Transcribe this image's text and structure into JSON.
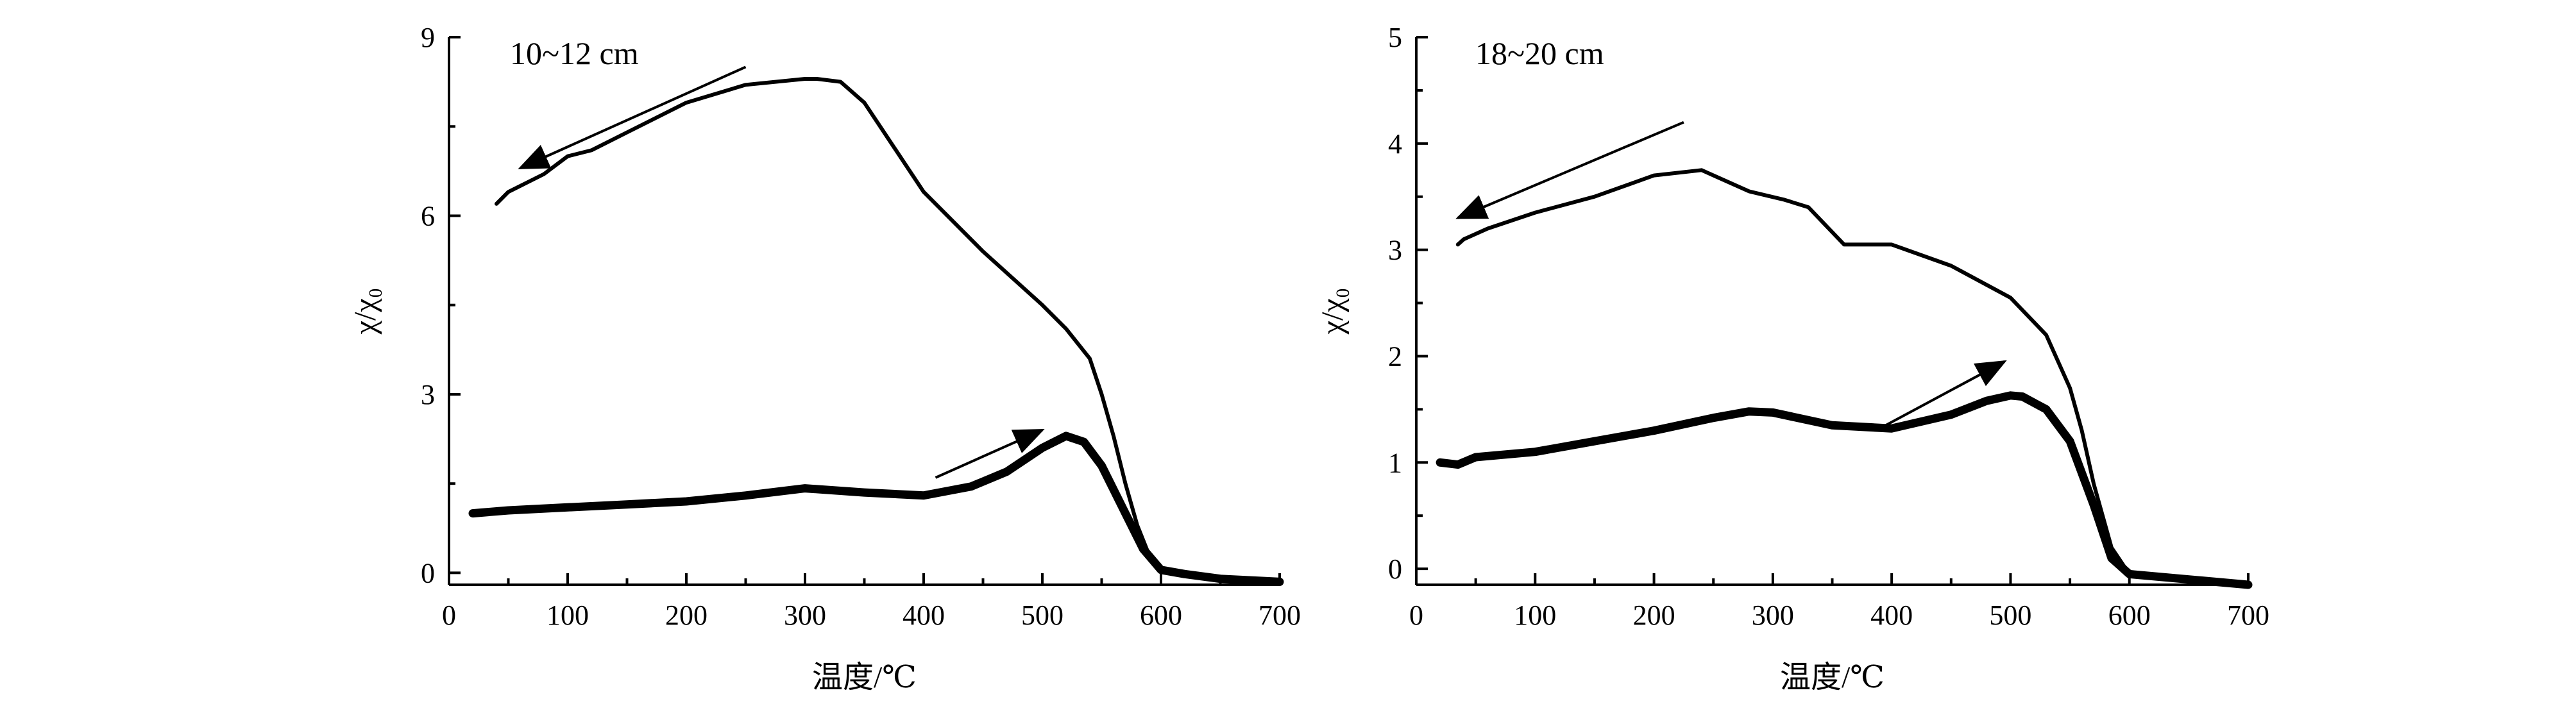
{
  "chart_data": [
    {
      "type": "line",
      "annotation": "10~12 cm",
      "xlabel": "温度/℃",
      "ylabel": "χ/χ₀",
      "xlim": [
        0,
        700
      ],
      "ylim": [
        -0.2,
        9
      ],
      "xticks": [
        "0",
        "100",
        "200",
        "300",
        "400",
        "500",
        "600",
        "700"
      ],
      "yticks": [
        "0",
        "3",
        "6",
        "9"
      ],
      "series": [
        {
          "role": "heating",
          "x": [
            20,
            50,
            100,
            150,
            200,
            250,
            300,
            350,
            400,
            440,
            470,
            500,
            520,
            535,
            550,
            570,
            585,
            600,
            620,
            650,
            700
          ],
          "y": [
            1.0,
            1.05,
            1.1,
            1.15,
            1.2,
            1.3,
            1.42,
            1.35,
            1.3,
            1.45,
            1.7,
            2.1,
            2.3,
            2.2,
            1.8,
            1.0,
            0.4,
            0.05,
            -0.02,
            -0.1,
            -0.15
          ]
        },
        {
          "role": "cooling",
          "x": [
            700,
            650,
            620,
            600,
            590,
            580,
            570,
            560,
            550,
            540,
            520,
            500,
            450,
            400,
            370,
            350,
            330,
            310,
            300,
            250,
            200,
            150,
            120,
            100,
            80,
            50,
            40
          ],
          "y": [
            -0.15,
            -0.1,
            -0.02,
            0.05,
            0.3,
            0.8,
            1.5,
            2.3,
            3.0,
            3.6,
            4.1,
            4.5,
            5.4,
            6.4,
            7.3,
            7.9,
            8.25,
            8.3,
            8.3,
            8.2,
            7.9,
            7.4,
            7.1,
            7.0,
            6.7,
            6.4,
            6.2
          ]
        }
      ],
      "arrows": [
        {
          "direction": "cooling",
          "from": [
            250,
            8.5
          ],
          "to": [
            60,
            6.8
          ]
        },
        {
          "direction": "heating",
          "from": [
            410,
            1.6
          ],
          "to": [
            500,
            2.4
          ]
        }
      ]
    },
    {
      "type": "line",
      "annotation": "18~20 cm",
      "xlabel": "温度/℃",
      "ylabel": "χ/χ₀",
      "xlim": [
        0,
        700
      ],
      "ylim": [
        -0.15,
        5
      ],
      "xticks": [
        "0",
        "100",
        "200",
        "300",
        "400",
        "500",
        "600",
        "700"
      ],
      "yticks": [
        "0",
        "1",
        "2",
        "3",
        "4",
        "5"
      ],
      "series": [
        {
          "role": "heating",
          "x": [
            20,
            35,
            50,
            100,
            150,
            200,
            250,
            280,
            300,
            350,
            400,
            450,
            480,
            500,
            510,
            530,
            550,
            570,
            585,
            600,
            650,
            700
          ],
          "y": [
            1.0,
            0.98,
            1.05,
            1.1,
            1.2,
            1.3,
            1.42,
            1.48,
            1.47,
            1.35,
            1.32,
            1.45,
            1.58,
            1.63,
            1.62,
            1.5,
            1.2,
            0.6,
            0.1,
            -0.05,
            -0.1,
            -0.15
          ]
        },
        {
          "role": "cooling",
          "x": [
            700,
            650,
            600,
            585,
            570,
            560,
            550,
            530,
            500,
            450,
            400,
            360,
            330,
            310,
            280,
            240,
            200,
            150,
            100,
            60,
            40,
            35
          ],
          "y": [
            -0.15,
            -0.1,
            -0.05,
            0.2,
            0.8,
            1.3,
            1.7,
            2.2,
            2.55,
            2.85,
            3.05,
            3.05,
            3.4,
            3.47,
            3.55,
            3.75,
            3.7,
            3.5,
            3.35,
            3.2,
            3.1,
            3.05
          ]
        }
      ],
      "arrows": [
        {
          "direction": "cooling",
          "from": [
            225,
            4.2
          ],
          "to": [
            35,
            3.3
          ]
        },
        {
          "direction": "heating",
          "from": [
            395,
            1.35
          ],
          "to": [
            495,
            1.95
          ]
        }
      ]
    }
  ]
}
